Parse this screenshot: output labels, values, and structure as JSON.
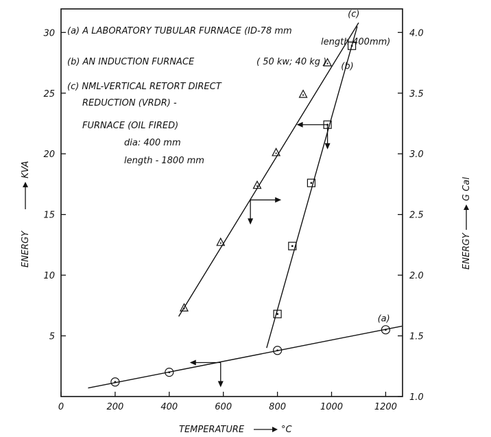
{
  "chart_data": {
    "type": "scatter",
    "xlabel": "TEMPERATURE",
    "xunit": "°C",
    "ylabel_left": "ENERGY",
    "yunit_left": "KVA",
    "ylabel_right": "ENERGY",
    "yunit_right": "G Cal",
    "xlim": [
      0,
      1300
    ],
    "ylim_left": [
      0,
      32
    ],
    "ylim_right": [
      1.0,
      4.2
    ],
    "x_ticks": [
      0,
      200,
      400,
      600,
      800,
      1000,
      1200
    ],
    "y_ticks_left": [
      5,
      10,
      15,
      20,
      25,
      30
    ],
    "y_ticks_right": [
      1.0,
      1.5,
      2.0,
      2.5,
      3.0,
      3.5,
      4.0
    ],
    "legend": [
      "(a) A LABORATORY TUBULAR FURNACE (ID-78 mm",
      "length-400mm)",
      "(b) AN INDUCTION FURNACE",
      "( 50 kw; 40 kg )",
      "(c) NML-VERTICAL RETORT DIRECT",
      "REDUCTION (VRDR) -",
      "FURNACE (OIL FIRED)",
      "dia: 400 mm",
      "length - 1800 mm"
    ],
    "grid": false,
    "series": [
      {
        "name": "(a)",
        "marker": "circle",
        "axis": "left",
        "x": [
          200,
          400,
          800,
          1200
        ],
        "y": [
          1.2,
          2.0,
          3.8,
          5.5
        ],
        "fit_x": [
          100,
          1260
        ],
        "fit_y": [
          0.7,
          5.8
        ],
        "label_at": [
          1170,
          6.2
        ]
      },
      {
        "name": "(b)",
        "marker": "square",
        "axis": "left",
        "x": [
          800,
          855,
          925,
          985,
          1075
        ],
        "y": [
          6.8,
          12.4,
          17.6,
          22.4,
          28.9
        ],
        "fit_x": [
          760,
          1095
        ],
        "fit_y": [
          4.0,
          30.5
        ],
        "label_at": [
          1035,
          27.0
        ]
      },
      {
        "name": "(c)",
        "marker": "triangle",
        "axis": "left",
        "x": [
          455,
          590,
          725,
          795,
          895,
          985
        ],
        "y": [
          7.3,
          12.7,
          17.4,
          20.1,
          24.9,
          27.5
        ],
        "fit_x": [
          435,
          1100
        ],
        "fit_y": [
          6.6,
          30.8
        ],
        "label_at": [
          1060,
          31.3
        ]
      }
    ],
    "axis_arrows": [
      {
        "x": 590,
        "y": 2.8,
        "side": "left"
      },
      {
        "x": 700,
        "y": 16.2,
        "side": "right"
      },
      {
        "x": 985,
        "y": 22.4,
        "side": "left"
      }
    ]
  }
}
